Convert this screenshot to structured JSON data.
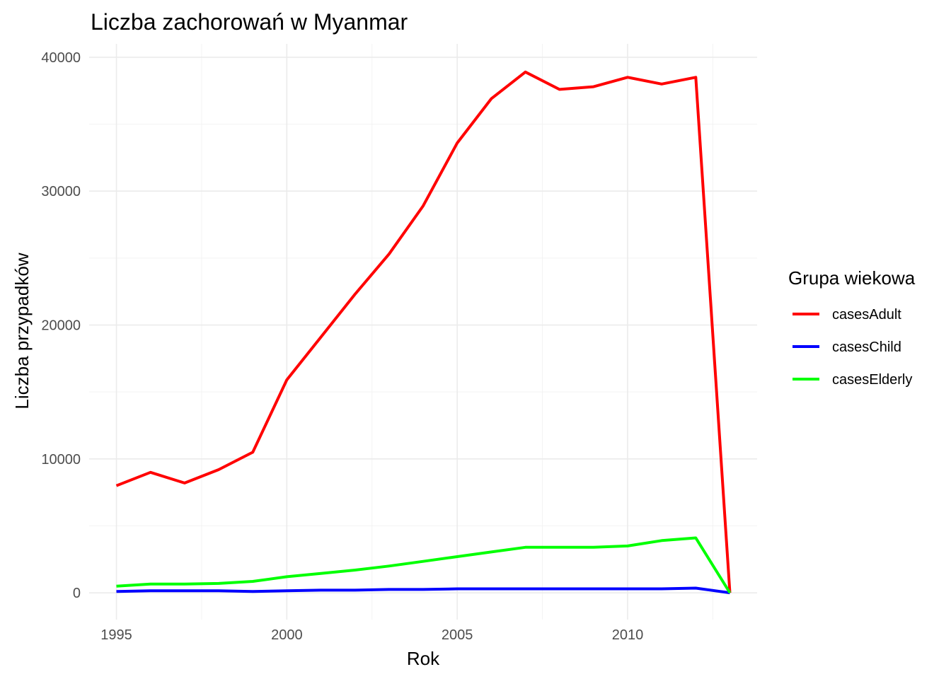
{
  "chart_data": {
    "type": "line",
    "title": "Liczba zachorowań w Myanmar",
    "xlabel": "Rok",
    "ylabel": "Liczba przypadków",
    "x": [
      1995,
      1996,
      1997,
      1998,
      1999,
      2000,
      2001,
      2002,
      2003,
      2004,
      2005,
      2006,
      2007,
      2008,
      2009,
      2010,
      2011,
      2012,
      2013
    ],
    "xlim": [
      1994.2,
      2013.8
    ],
    "ylim": [
      -2000,
      41000
    ],
    "x_ticks": [
      1995,
      2000,
      2005,
      2010
    ],
    "y_ticks": [
      0,
      10000,
      20000,
      30000,
      40000
    ],
    "x_minor": [
      1997.5,
      2002.5,
      2007.5,
      2012.5
    ],
    "y_minor": [
      5000,
      15000,
      25000,
      35000
    ],
    "grid": true,
    "legend": {
      "title": "Grupa wiekowa",
      "position": "right"
    },
    "series": [
      {
        "name": "casesAdult",
        "color": "#ff0000",
        "values": [
          8000,
          9000,
          8200,
          9200,
          10500,
          15900,
          19100,
          22300,
          25300,
          28900,
          33600,
          36900,
          38900,
          37600,
          37800,
          38500,
          38000,
          38500,
          0
        ]
      },
      {
        "name": "casesChild",
        "color": "#0000ff",
        "values": [
          100,
          150,
          150,
          150,
          100,
          150,
          200,
          200,
          250,
          250,
          300,
          300,
          300,
          300,
          300,
          300,
          300,
          350,
          0
        ]
      },
      {
        "name": "casesElderly",
        "color": "#00ff00",
        "values": [
          500,
          650,
          650,
          700,
          850,
          1200,
          1450,
          1700,
          2000,
          2350,
          2700,
          3050,
          3400,
          3400,
          3400,
          3500,
          3900,
          4100,
          0
        ]
      }
    ]
  }
}
